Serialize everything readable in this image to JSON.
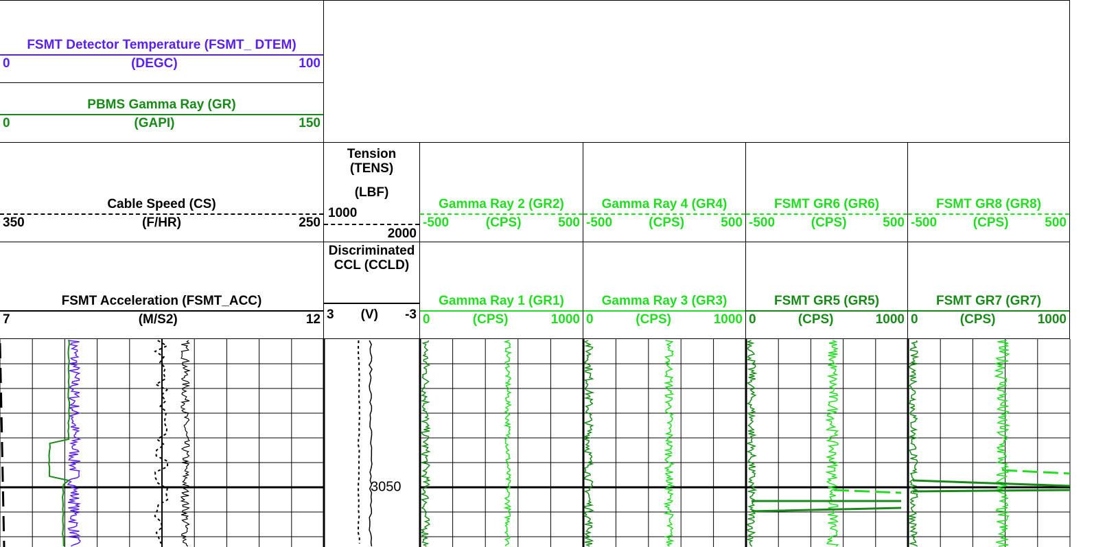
{
  "header": {
    "dtem": {
      "title": "FSMT Detector Temperature (FSMT_ DTEM)",
      "left": 0,
      "unit": "(DEGC)",
      "right": 100,
      "color": "#5b1ff0"
    },
    "gr": {
      "title": "PBMS Gamma Ray (GR)",
      "left": 0,
      "unit": "(GAPI)",
      "right": 150,
      "color": "#188a18"
    }
  },
  "track_headers": {
    "row1": [
      {
        "title": "Cable Speed (CS)",
        "left": 350,
        "unit": "(F/HR)",
        "right": 250,
        "color": "#000000",
        "dashed": true
      },
      {
        "title": "Tension (TENS)",
        "left": 1000,
        "unit": "(LBF)",
        "right": 2000,
        "color": "#000000",
        "dashed": true
      },
      {
        "title": "Gamma Ray 2 (GR2)",
        "left": -500,
        "unit": "(CPS)",
        "right": 500,
        "color": "#22dd22",
        "dashed": true
      },
      {
        "title": "Gamma Ray 4 (GR4)",
        "left": -500,
        "unit": "(CPS)",
        "right": 500,
        "color": "#22dd22",
        "dashed": true
      },
      {
        "title": "FSMT GR6 (GR6)",
        "left": -500,
        "unit": "(CPS)",
        "right": 500,
        "color": "#22dd22",
        "dashed": true
      },
      {
        "title": "FSMT GR8 (GR8)",
        "left": -500,
        "unit": "(CPS)",
        "right": 500,
        "color": "#22dd22",
        "dashed": true
      }
    ],
    "row2": [
      {
        "title": "FSMT Acceleration (FSMT_ACC)",
        "left": 7,
        "unit": "(M/S2)",
        "right": 12,
        "color": "#000000",
        "dashed": false
      },
      {
        "title": "Discriminated CCL (CCLD)",
        "left": 3,
        "unit": "(V)",
        "right": -3,
        "color": "#000000",
        "dashed": false
      },
      {
        "title": "Gamma Ray 1 (GR1)",
        "left": 0,
        "unit": "(CPS)",
        "right": 1000,
        "color": "#22dd22",
        "dashed": false
      },
      {
        "title": "Gamma Ray 3 (GR3)",
        "left": 0,
        "unit": "(CPS)",
        "right": 1000,
        "color": "#22dd22",
        "dashed": false
      },
      {
        "title": "FSMT GR5 (GR5)",
        "left": 0,
        "unit": "(CPS)",
        "right": 1000,
        "color": "#188a18",
        "dashed": false
      },
      {
        "title": "FSMT GR7 (GR7)",
        "left": 0,
        "unit": "(CPS)",
        "right": 1000,
        "color": "#188a18",
        "dashed": false
      }
    ]
  },
  "depth_label": "3050"
}
